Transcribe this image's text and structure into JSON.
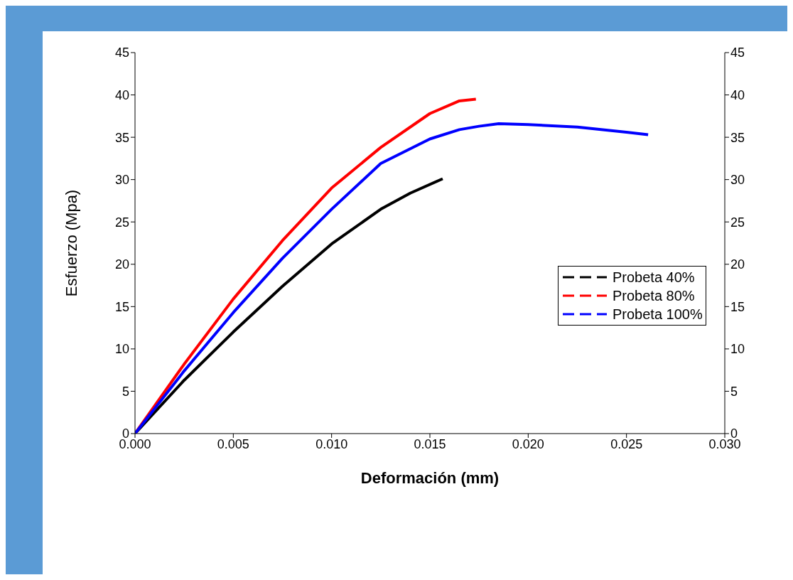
{
  "chart_data": {
    "type": "line",
    "xlabel": "Deformación (mm)",
    "ylabel": "Esfuerzo (Mpa)",
    "xlim": [
      0,
      0.03
    ],
    "xticks": [
      {
        "value": 0,
        "label": "0.000"
      },
      {
        "value": 0.005,
        "label": "0.005"
      },
      {
        "value": 0.01,
        "label": "0.010"
      },
      {
        "value": 0.015,
        "label": "0.015"
      },
      {
        "value": 0.02,
        "label": "0.020"
      },
      {
        "value": 0.025,
        "label": "0.025"
      },
      {
        "value": 0.03,
        "label": "0.030"
      }
    ],
    "ylim": [
      0,
      45
    ],
    "yticks": [
      0,
      5,
      10,
      15,
      20,
      25,
      30,
      35,
      40,
      45
    ],
    "y2lim": [
      0,
      45
    ],
    "y2ticks": [
      0,
      5,
      10,
      15,
      20,
      25,
      30,
      35,
      40,
      45
    ],
    "grid": false,
    "legend": "right",
    "marker": "none",
    "line_style": "solid",
    "series": [
      {
        "name": "Probeta 40%",
        "color": "#000000",
        "x": [
          0,
          0.0025,
          0.005,
          0.0075,
          0.01,
          0.0125,
          0.014,
          0.01565
        ],
        "values": [
          0,
          6.3,
          12,
          17.4,
          22.4,
          26.5,
          28.4,
          30.1
        ]
      },
      {
        "name": "Probeta 80%",
        "color": "#ff0000",
        "x": [
          0,
          0.0025,
          0.005,
          0.0075,
          0.01,
          0.0125,
          0.015,
          0.0165,
          0.01734
        ],
        "values": [
          0,
          8.2,
          15.9,
          22.8,
          29,
          33.8,
          37.8,
          39.3,
          39.5
        ]
      },
      {
        "name": "Probeta 100%",
        "color": "#0000ff",
        "x": [
          0,
          0.0025,
          0.005,
          0.0075,
          0.01,
          0.0125,
          0.015,
          0.0165,
          0.0175,
          0.0185,
          0.02,
          0.0225,
          0.025,
          0.0261
        ],
        "values": [
          0,
          7.4,
          14.3,
          20.7,
          26.5,
          31.9,
          34.8,
          35.9,
          36.3,
          36.6,
          36.5,
          36.2,
          35.6,
          35.3
        ]
      }
    ]
  }
}
